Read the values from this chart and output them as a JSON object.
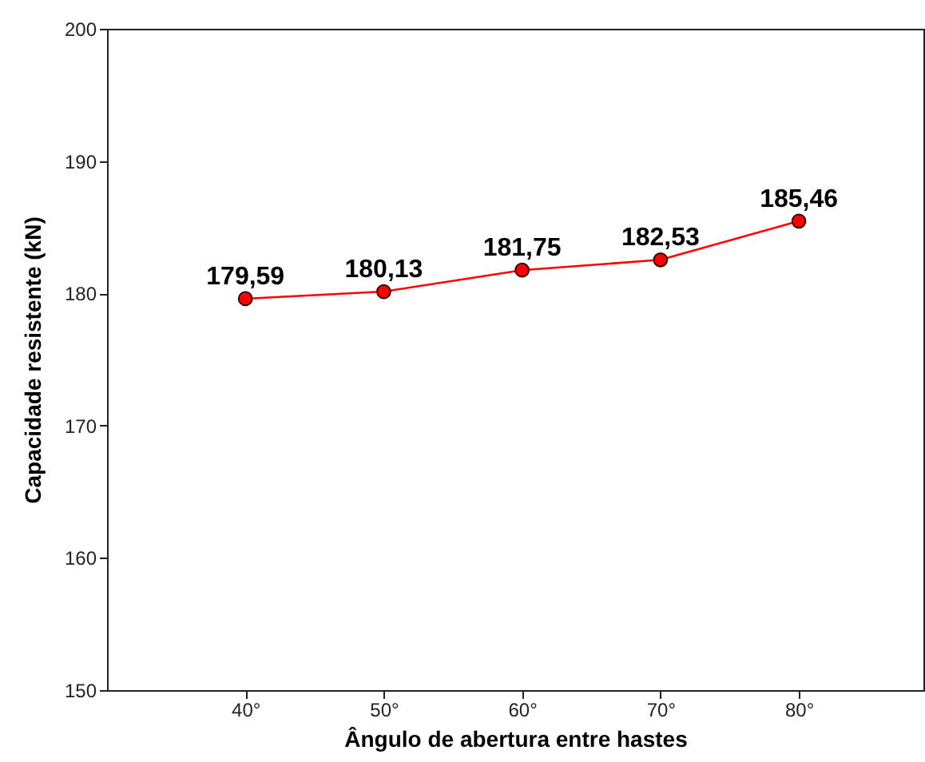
{
  "chart_data": {
    "type": "line",
    "xlabel": "Ângulo de abertura entre hastes",
    "ylabel": "Capacidade resistente (kN)",
    "x": [
      40,
      50,
      60,
      70,
      80
    ],
    "series": [
      {
        "color": "#ff0000",
        "values": [
          179.59,
          180.13,
          181.75,
          182.53,
          185.46
        ],
        "value_labels": [
          "179,59",
          "180,13",
          "181,75",
          "182,53",
          "185,46"
        ]
      }
    ],
    "xlim": [
      30,
      89
    ],
    "xticks": [
      {
        "value": 40,
        "label": "40°"
      },
      {
        "value": 50,
        "label": "50°"
      },
      {
        "value": 60,
        "label": "60°"
      },
      {
        "value": 70,
        "label": "70°"
      },
      {
        "value": 80,
        "label": "80°"
      }
    ],
    "ylim": [
      150,
      200
    ],
    "yticks": [
      150,
      160,
      170,
      180,
      190,
      200
    ],
    "grid": false,
    "marker": "circle",
    "line_style": "solid"
  }
}
